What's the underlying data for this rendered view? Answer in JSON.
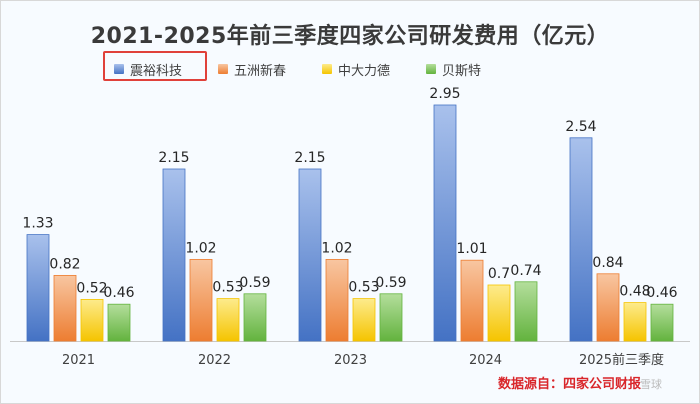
{
  "chart_data": {
    "type": "bar",
    "title": "2021-2025年前三季度四家公司研发费用（亿元）",
    "categories": [
      "2021",
      "2022",
      "2023",
      "2024",
      "2025前三季度"
    ],
    "series": [
      {
        "name": "震裕科技",
        "values": [
          1.33,
          2.15,
          2.15,
          2.95,
          2.54
        ],
        "labels": [
          "1.33",
          "2.15",
          "2.15",
          "2.95",
          "2.54"
        ],
        "color": "#4472c4",
        "light": "#a9c1ec"
      },
      {
        "name": "五洲新春",
        "values": [
          0.82,
          1.02,
          1.02,
          1.01,
          0.84
        ],
        "labels": [
          "0.82",
          "1.02",
          "1.02",
          "1.01",
          "0.84"
        ],
        "color": "#ed7d31",
        "light": "#f8c6a1"
      },
      {
        "name": "中大力德",
        "values": [
          0.52,
          0.53,
          0.53,
          0.7,
          0.48
        ],
        "labels": [
          "0.52",
          "0.53",
          "0.53",
          "0.7",
          "0.48"
        ],
        "color": "#f5c400",
        "light": "#fdeb8c"
      },
      {
        "name": "贝斯特",
        "values": [
          0.46,
          0.59,
          0.59,
          0.74,
          0.46
        ],
        "labels": [
          "0.46",
          "0.59",
          "0.59",
          "0.74",
          "0.46"
        ],
        "color": "#63b33e",
        "light": "#b4de9c"
      }
    ],
    "ylim": [
      0,
      3.2
    ],
    "grid": false,
    "legend_position": "top-left",
    "highlighted_series": "震裕科技",
    "source_note": "数据源自：四家公司财报",
    "watermark": "雪球"
  }
}
